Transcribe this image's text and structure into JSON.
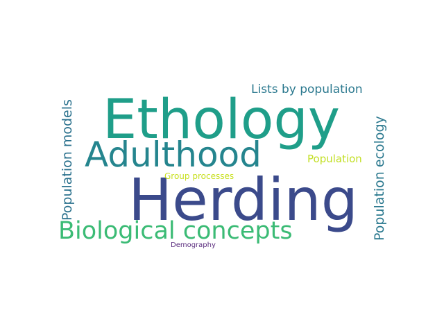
{
  "words": {
    "ethology": {
      "text": "Ethology",
      "color": "#1f9e89"
    },
    "herding": {
      "text": "Herding",
      "color": "#3b4a8b"
    },
    "adulthood": {
      "text": "Adulthood",
      "color": "#25858e"
    },
    "biological": {
      "text": "Biological concepts",
      "color": "#3bbb75"
    },
    "lists": {
      "text": "Lists by population",
      "color": "#2a788e"
    },
    "pop_models": {
      "text": "Population models",
      "color": "#2c728e"
    },
    "pop_ecology": {
      "text": "Population ecology",
      "color": "#2a788e"
    },
    "population": {
      "text": "Population",
      "color": "#c2df23"
    },
    "group_processes": {
      "text": "Group processes",
      "color": "#c8e020"
    },
    "demography": {
      "text": "Demography",
      "color": "#5b2d7e"
    }
  }
}
